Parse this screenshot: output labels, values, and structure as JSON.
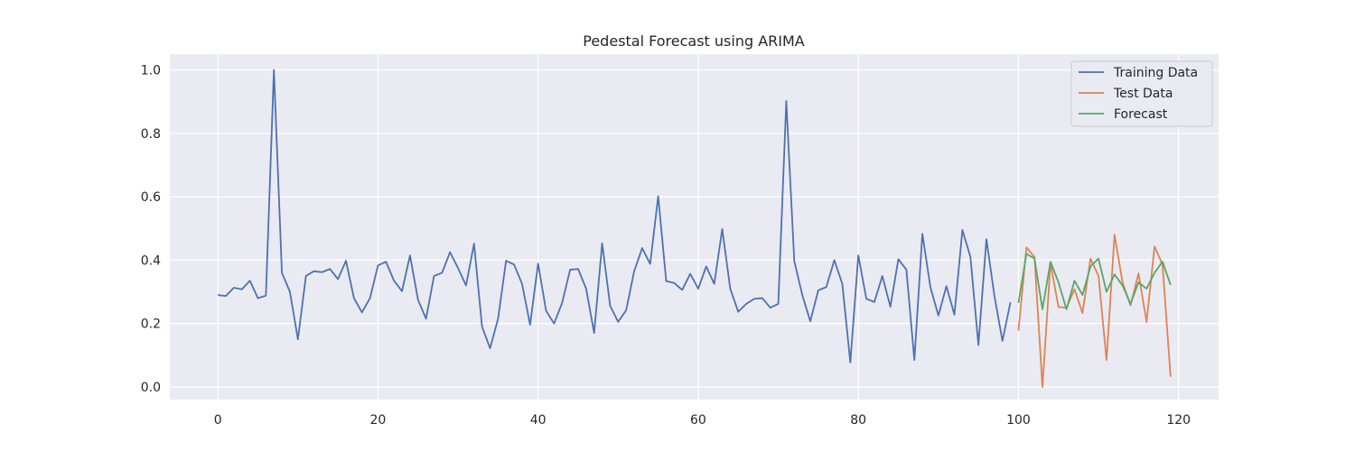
{
  "chart_data": {
    "type": "line",
    "title": "Pedestal Forecast using ARIMA",
    "xlabel": "",
    "ylabel": "",
    "xlim": [
      -6,
      125
    ],
    "ylim": [
      -0.04,
      1.05
    ],
    "x_ticks": [
      0,
      20,
      40,
      60,
      80,
      100,
      120
    ],
    "y_ticks": [
      0.0,
      0.2,
      0.4,
      0.6,
      0.8,
      1.0
    ],
    "x_tick_labels": [
      "0",
      "20",
      "40",
      "60",
      "80",
      "100",
      "120"
    ],
    "y_tick_labels": [
      "0.0",
      "0.2",
      "0.4",
      "0.6",
      "0.8",
      "1.0"
    ],
    "grid": true,
    "legend_position": "top-right",
    "series": [
      {
        "name": "Training Data",
        "color": "#4c72b0",
        "x_start": 0,
        "values": [
          0.29,
          0.287,
          0.313,
          0.308,
          0.335,
          0.28,
          0.288,
          1.0,
          0.36,
          0.3,
          0.15,
          0.35,
          0.365,
          0.362,
          0.372,
          0.34,
          0.398,
          0.28,
          0.235,
          0.28,
          0.383,
          0.395,
          0.335,
          0.302,
          0.415,
          0.275,
          0.215,
          0.35,
          0.36,
          0.425,
          0.375,
          0.32,
          0.452,
          0.19,
          0.122,
          0.215,
          0.398,
          0.386,
          0.325,
          0.196,
          0.389,
          0.24,
          0.2,
          0.265,
          0.37,
          0.372,
          0.31,
          0.17,
          0.453,
          0.256,
          0.205,
          0.242,
          0.365,
          0.438,
          0.388,
          0.602,
          0.334,
          0.328,
          0.306,
          0.357,
          0.31,
          0.38,
          0.325,
          0.498,
          0.31,
          0.237,
          0.262,
          0.278,
          0.28,
          0.25,
          0.262,
          0.902,
          0.397,
          0.29,
          0.207,
          0.305,
          0.315,
          0.4,
          0.325,
          0.077,
          0.415,
          0.278,
          0.268,
          0.35,
          0.253,
          0.403,
          0.37,
          0.085,
          0.483,
          0.315,
          0.225,
          0.318,
          0.228,
          0.495,
          0.41,
          0.132,
          0.466,
          0.287,
          0.145,
          0.267
        ]
      },
      {
        "name": "Test Data",
        "color": "#dd8452",
        "x_start": 100,
        "values": [
          0.178,
          0.44,
          0.41,
          0.0,
          0.39,
          0.252,
          0.25,
          0.308,
          0.233,
          0.405,
          0.35,
          0.085,
          0.48,
          0.33,
          0.257,
          0.358,
          0.205,
          0.443,
          0.385,
          0.032
        ]
      },
      {
        "name": "Forecast",
        "color": "#55a868",
        "x_start": 100,
        "values": [
          0.265,
          0.42,
          0.405,
          0.245,
          0.395,
          0.33,
          0.245,
          0.335,
          0.29,
          0.38,
          0.405,
          0.3,
          0.355,
          0.32,
          0.262,
          0.33,
          0.31,
          0.36,
          0.395,
          0.322
        ]
      }
    ]
  }
}
